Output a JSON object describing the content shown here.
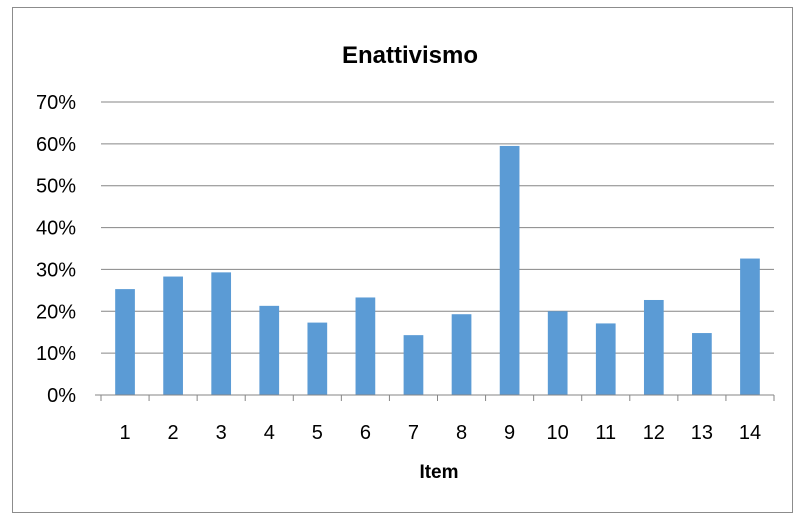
{
  "chart_data": {
    "type": "bar",
    "title": "Enattivismo",
    "xlabel": "Item",
    "ylabel": "",
    "categories": [
      "1",
      "2",
      "3",
      "4",
      "5",
      "6",
      "7",
      "8",
      "9",
      "10",
      "11",
      "12",
      "13",
      "14"
    ],
    "values": [
      25.3,
      28.3,
      29.3,
      21.3,
      17.3,
      23.3,
      14.3,
      19.3,
      59.5,
      20.0,
      17.1,
      22.7,
      14.8,
      32.6
    ],
    "ylim": [
      0,
      70
    ],
    "yticks": [
      0,
      10,
      20,
      30,
      40,
      50,
      60,
      70
    ],
    "ytick_labels": [
      "0%",
      "10%",
      "20%",
      "30%",
      "40%",
      "50%",
      "60%",
      "70%"
    ],
    "grid": true,
    "bar_color": "#5B9BD5",
    "grid_color": "#868686"
  }
}
